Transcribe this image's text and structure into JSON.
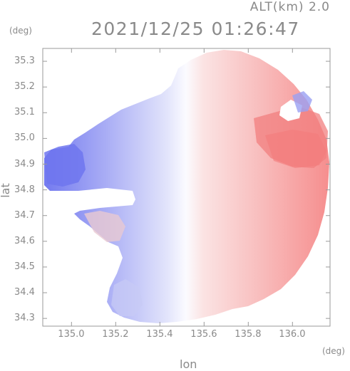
{
  "header": {
    "altitude_label": "ALT(km) 2.0",
    "datetime": "2021/12/25 01:26:47"
  },
  "axes": {
    "x_unit": "(deg)",
    "y_unit": "(deg)",
    "x_title": "lon",
    "y_title": "lat",
    "x_ticks": [
      "135.0",
      "135.2",
      "135.4",
      "135.6",
      "135.8",
      "136.0"
    ],
    "y_ticks": [
      "35.3",
      "35.2",
      "35.1",
      "35.0",
      "34.9",
      "34.8",
      "34.7",
      "34.6",
      "34.5",
      "34.4",
      "34.3"
    ]
  },
  "map": {
    "type": "doppler-velocity-ppi",
    "x_range_deg": [
      134.87,
      136.17
    ],
    "y_range_deg": [
      34.27,
      35.35
    ],
    "colors": {
      "toward": "#7b83f0",
      "away": "#f58a8a",
      "near_zero": "#f4f4ff",
      "frame": "#9a9a9a"
    }
  }
}
